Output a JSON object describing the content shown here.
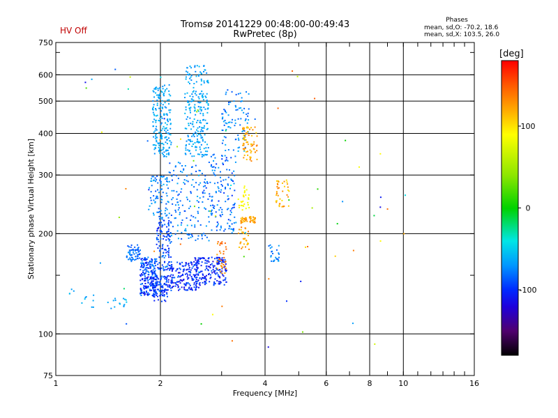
{
  "status": {
    "hv": "HV Off"
  },
  "header": {
    "title_line1": "Tromsø 20141229 00:48:00-00:49:43",
    "title_line2": "RwPretec (8p)"
  },
  "phase_box": {
    "title": "Phases",
    "o_mode": "mean, sd,O: -70.2, 18.6",
    "x_mode": "mean, sd,X: 103.5, 26.0"
  },
  "colorbar": {
    "unit": "[deg]",
    "ticks": [
      {
        "label": "100",
        "value": 100
      },
      {
        "label": "0",
        "value": 0
      },
      {
        "label": "-100",
        "value": -100
      }
    ],
    "range": [
      -180,
      180
    ]
  },
  "chart_data": {
    "type": "scatter",
    "xlabel": "Frequency [MHz]",
    "ylabel": "Stationary phase Virtual Height [km]",
    "xscale": "log",
    "yscale": "log",
    "xlim": [
      1,
      16
    ],
    "ylim": [
      75,
      750
    ],
    "xticks": [
      {
        "label": "1",
        "value": 1
      },
      {
        "label": "2",
        "value": 2
      },
      {
        "label": "4",
        "value": 4
      },
      {
        "label": "6",
        "value": 6
      },
      {
        "label": "8",
        "value": 8
      },
      {
        "label": "10",
        "value": 10
      },
      {
        "label": "16",
        "value": 16
      }
    ],
    "yticks": [
      {
        "label": "75",
        "value": 75
      },
      {
        "label": "100",
        "value": 100
      },
      {
        "label": "200",
        "value": 200
      },
      {
        "label": "300",
        "value": 300
      },
      {
        "label": "400",
        "value": 400
      },
      {
        "label": "500",
        "value": 500
      },
      {
        "label": "600",
        "value": 600
      },
      {
        "label": "750",
        "value": 750
      }
    ],
    "xgrid": [
      2,
      4,
      6,
      8,
      10
    ],
    "ygrid": [
      100,
      200,
      300,
      400,
      500,
      600
    ],
    "grid": true,
    "color_by": "phase",
    "clusters": [
      {
        "x": [
          1.6,
          1.75
        ],
        "y": [
          165,
          185
        ],
        "phase": [
          -95,
          -70
        ],
        "n": 60
      },
      {
        "x": [
          1.75,
          1.95
        ],
        "y": [
          130,
          150
        ],
        "phase": [
          -120,
          -70
        ],
        "n": 120
      },
      {
        "x": [
          1.75,
          1.95
        ],
        "y": [
          150,
          170
        ],
        "phase": [
          -110,
          -70
        ],
        "n": 100
      },
      {
        "x": [
          1.9,
          2.1
        ],
        "y": [
          125,
          150
        ],
        "phase": [
          -110,
          -80
        ],
        "n": 100
      },
      {
        "x": [
          1.95,
          2.15
        ],
        "y": [
          155,
          220
        ],
        "phase": [
          -110,
          -75
        ],
        "n": 110
      },
      {
        "x": [
          2.1,
          2.6
        ],
        "y": [
          135,
          165
        ],
        "phase": [
          -120,
          -80
        ],
        "n": 190
      },
      {
        "x": [
          2.5,
          3.1
        ],
        "y": [
          140,
          170
        ],
        "phase": [
          -120,
          -85
        ],
        "n": 180
      },
      {
        "x": [
          1.85,
          2.1
        ],
        "y": [
          220,
          300
        ],
        "phase": [
          -90,
          -60
        ],
        "n": 80
      },
      {
        "x": [
          1.9,
          2.15
        ],
        "y": [
          340,
          560
        ],
        "phase": [
          -75,
          -55
        ],
        "n": 190
      },
      {
        "x": [
          2.35,
          2.75
        ],
        "y": [
          340,
          640
        ],
        "phase": [
          -75,
          -55
        ],
        "n": 230
      },
      {
        "x": [
          2.1,
          2.8
        ],
        "y": [
          190,
          330
        ],
        "phase": [
          -95,
          -60
        ],
        "n": 170
      },
      {
        "x": [
          2.8,
          3.3
        ],
        "y": [
          200,
          350
        ],
        "phase": [
          -100,
          -65
        ],
        "n": 130
      },
      {
        "x": [
          3.0,
          3.6
        ],
        "y": [
          350,
          550
        ],
        "phase": [
          -90,
          -60
        ],
        "n": 90
      },
      {
        "x": [
          3.4,
          3.75
        ],
        "y": [
          215,
          225
        ],
        "phase": [
          110,
          140
        ],
        "n": 45
      },
      {
        "x": [
          3.45,
          3.8
        ],
        "y": [
          330,
          420
        ],
        "phase": [
          105,
          140
        ],
        "n": 70
      },
      {
        "x": [
          3.35,
          3.6
        ],
        "y": [
          235,
          280
        ],
        "phase": [
          80,
          100
        ],
        "n": 30
      },
      {
        "x": [
          2.9,
          3.1
        ],
        "y": [
          150,
          190
        ],
        "phase": [
          120,
          150
        ],
        "n": 35
      },
      {
        "x": [
          3.35,
          3.6
        ],
        "y": [
          175,
          210
        ],
        "phase": [
          100,
          140
        ],
        "n": 30
      },
      {
        "x": [
          4.3,
          4.7
        ],
        "y": [
          240,
          290
        ],
        "phase": [
          100,
          140
        ],
        "n": 40
      },
      {
        "x": [
          4.1,
          4.4
        ],
        "y": [
          165,
          185
        ],
        "phase": [
          -90,
          -60
        ],
        "n": 25
      },
      {
        "x": [
          1.05,
          1.3
        ],
        "y": [
          120,
          145
        ],
        "phase": [
          -70,
          -50
        ],
        "n": 12
      },
      {
        "x": [
          1.4,
          1.6
        ],
        "y": [
          120,
          128
        ],
        "phase": [
          -70,
          -50
        ],
        "n": 14
      },
      {
        "x": [
          1.15,
          10.5
        ],
        "y": [
          90,
          680
        ],
        "phase": [
          -120,
          150
        ],
        "n": 70
      }
    ]
  }
}
